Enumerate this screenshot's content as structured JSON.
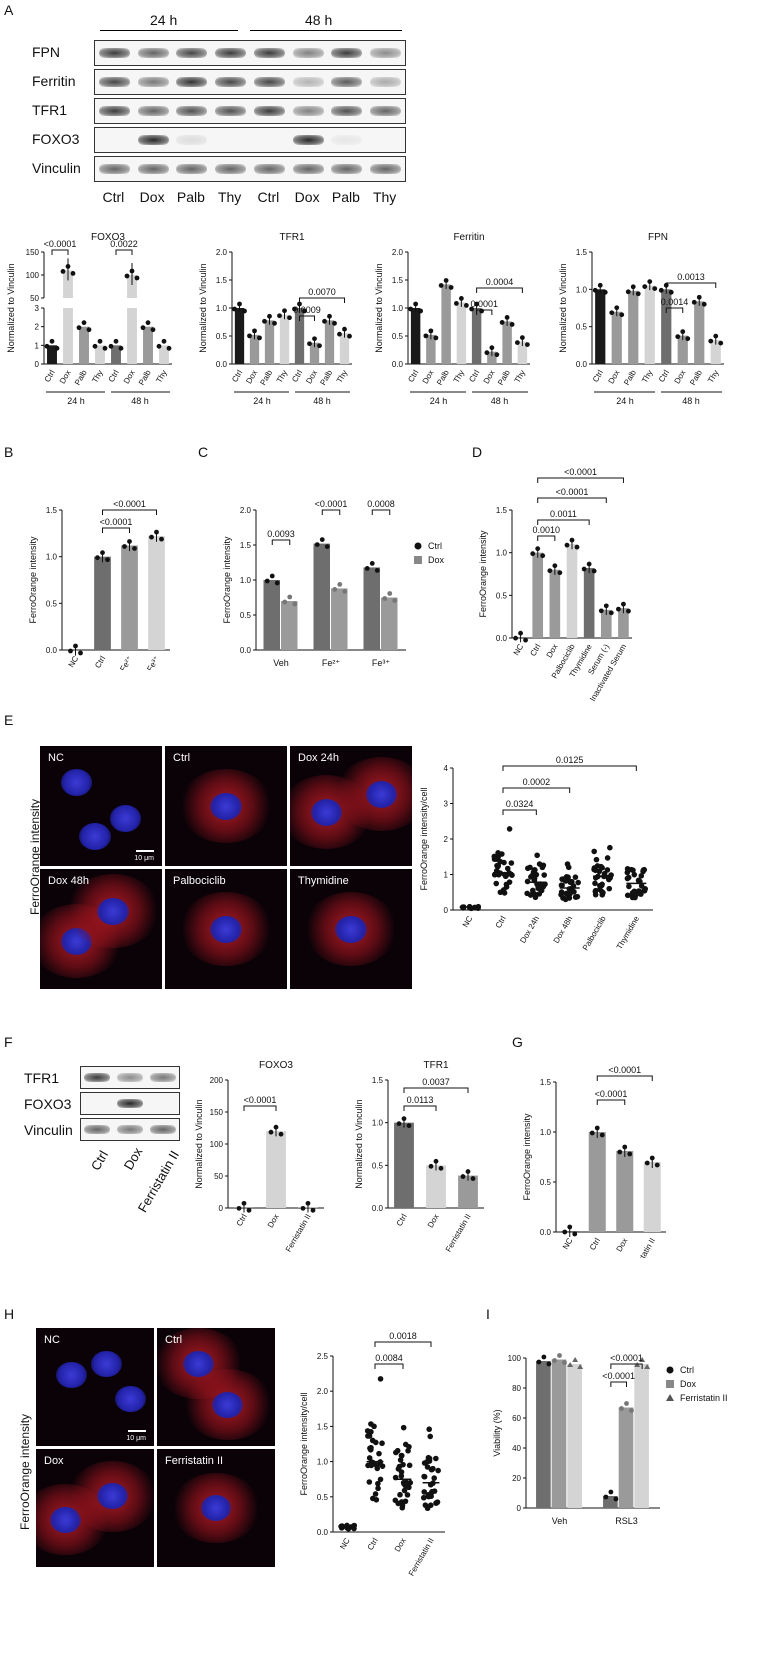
{
  "panels": {
    "A": {
      "letter": "A",
      "timepoints": [
        "24 h",
        "48 h"
      ],
      "blot_rows": [
        "FPN",
        "Ferritin",
        "TFR1",
        "FOXO3",
        "Vinculin"
      ],
      "lanes": [
        "Ctrl",
        "Dox",
        "Palb",
        "Thy",
        "Ctrl",
        "Dox",
        "Palb",
        "Thy"
      ]
    },
    "B": {
      "letter": "B"
    },
    "C": {
      "letter": "C"
    },
    "D": {
      "letter": "D"
    },
    "E": {
      "letter": "E",
      "ylabel_images": "FerroOrange intensity",
      "image_labels": [
        "NC",
        "Ctrl",
        "Dox 24h",
        "Dox 48h",
        "Palbociclib",
        "Thymidine"
      ],
      "scale": "10 μm"
    },
    "F": {
      "letter": "F",
      "blot_rows": [
        "TFR1",
        "FOXO3",
        "Vinculin"
      ],
      "lanes": [
        "Ctrl",
        "Dox",
        "Ferristatin II"
      ]
    },
    "G": {
      "letter": "G"
    },
    "H": {
      "letter": "H",
      "ylabel_images": "FerroOrange intensity",
      "image_labels": [
        "NC",
        "Ctrl",
        "Dox",
        "Ferristatin II"
      ],
      "scale": "10 μm"
    },
    "I": {
      "letter": "I"
    }
  },
  "colors": {
    "dark": "#6e6e6e",
    "mid": "#9a9a9a",
    "light": "#d4d4d4",
    "black": "#1a1a1a"
  },
  "chart_data": [
    {
      "id": "A-FOXO3",
      "type": "bar",
      "title": "FOXO3",
      "ylabel": "Normalized to Vinculin",
      "categories": [
        "Ctrl",
        "Dox",
        "Palb",
        "Thy",
        "Ctrl",
        "Dox",
        "Palb",
        "Thy"
      ],
      "groups": [
        "24 h",
        "48 h"
      ],
      "values": [
        1,
        110,
        2,
        1,
        1,
        100,
        2,
        1
      ],
      "broken_axis": {
        "lower": [
          0,
          3
        ],
        "upper": [
          50,
          150
        ],
        "lower_ticks": [
          "0",
          "1",
          "2",
          "3"
        ],
        "upper_ticks": [
          "50",
          "100",
          "150"
        ]
      },
      "comparisons": [
        {
          "label": "<0.0001"
        },
        {
          "label": "0.0022"
        }
      ]
    },
    {
      "id": "A-TFR1",
      "type": "bar",
      "title": "TFR1",
      "ylabel": "Normalized to Vinculin",
      "categories": [
        "Ctrl",
        "Dox",
        "Palb",
        "Thy",
        "Ctrl",
        "Dox",
        "Palb",
        "Thy"
      ],
      "groups": [
        "24 h",
        "48 h"
      ],
      "values": [
        1.0,
        0.52,
        0.78,
        0.88,
        1.0,
        0.38,
        0.78,
        0.55
      ],
      "ylim": [
        0,
        2.0
      ],
      "yticks": [
        "0.0",
        "0.5",
        "1.0",
        "1.5",
        "2.0"
      ],
      "comparisons": [
        {
          "label": "0.0009"
        },
        {
          "label": "0.0070"
        }
      ]
    },
    {
      "id": "A-Ferritin",
      "type": "bar",
      "title": "Ferritin",
      "ylabel": "Normalized to Vinculin",
      "categories": [
        "Ctrl",
        "Dox",
        "Palb",
        "Thy",
        "Ctrl",
        "Dox",
        "Palb",
        "Thy"
      ],
      "groups": [
        "24 h",
        "48 h"
      ],
      "values": [
        1.0,
        0.52,
        1.42,
        1.1,
        1.0,
        0.22,
        0.76,
        0.4
      ],
      "ylim": [
        0,
        2.0
      ],
      "yticks": [
        "0.0",
        "0.5",
        "1.0",
        "1.5",
        "2.0"
      ],
      "comparisons": [
        {
          "label": "0.0001"
        },
        {
          "label": "0.0004"
        }
      ]
    },
    {
      "id": "A-FPN",
      "type": "bar",
      "title": "FPN",
      "ylabel": "Normalized to Vinculin",
      "categories": [
        "Ctrl",
        "Dox",
        "Palb",
        "Thy",
        "Ctrl",
        "Dox",
        "Palb",
        "Thy"
      ],
      "groups": [
        "24 h",
        "48 h"
      ],
      "values": [
        1.0,
        0.7,
        0.98,
        1.05,
        1.0,
        0.38,
        0.84,
        0.32
      ],
      "ylim": [
        0,
        1.5
      ],
      "yticks": [
        "0.0",
        "0.5",
        "1.0",
        "1.5"
      ],
      "comparisons": [
        {
          "label": "0.0014"
        },
        {
          "label": "0.0013"
        }
      ]
    },
    {
      "id": "B",
      "type": "bar",
      "ylabel": "FerroOrange intensity",
      "categories": [
        "NC",
        "Ctrl",
        "Fe²⁺",
        "Fe³⁺"
      ],
      "values": [
        0,
        1.0,
        1.12,
        1.22
      ],
      "ylim": [
        0,
        1.5
      ],
      "yticks": [
        "0.0",
        "0.5",
        "1.0",
        "1.5"
      ],
      "comparisons": [
        {
          "label": "<0.0001"
        },
        {
          "label": "<0.0001"
        }
      ]
    },
    {
      "id": "C",
      "type": "bar",
      "ylabel": "FerroOrange intensity",
      "categories": [
        "Veh",
        "Fe²⁺",
        "Fe³⁺"
      ],
      "series": [
        {
          "name": "Ctrl",
          "values": [
            1.0,
            1.52,
            1.18
          ]
        },
        {
          "name": "Dox",
          "values": [
            0.7,
            0.88,
            0.75
          ]
        }
      ],
      "ylim": [
        0,
        2.0
      ],
      "yticks": [
        "0.0",
        "0.5",
        "1.0",
        "1.5",
        "2.0"
      ],
      "legend": "right",
      "comparisons": [
        {
          "label": "0.0093"
        },
        {
          "label": "<0.0001"
        },
        {
          "label": "0.0008"
        }
      ]
    },
    {
      "id": "D",
      "type": "bar",
      "ylabel": "FerroOrange intensity",
      "categories": [
        "NC",
        "Ctrl",
        "Dox",
        "Palbociclib",
        "Thymidine",
        "Serum (-)",
        "Inactivated Serum"
      ],
      "values": [
        0.01,
        1.0,
        0.8,
        1.1,
        0.82,
        0.33,
        0.35
      ],
      "ylim": [
        0,
        1.5
      ],
      "yticks": [
        "0.0",
        "0.5",
        "1.0",
        "1.5"
      ],
      "comparisons": [
        {
          "label": "0.0010"
        },
        {
          "label": "0.0011"
        },
        {
          "label": "<0.0001"
        },
        {
          "label": "<0.0001"
        }
      ]
    },
    {
      "id": "E",
      "type": "scatter",
      "ylabel": "FerroOrange intensity/cell",
      "categories": [
        "NC",
        "Ctrl",
        "Dox 24h",
        "Dox 48h",
        "Palbociclib",
        "Thymidine"
      ],
      "means": [
        0.08,
        1.05,
        0.78,
        0.62,
        0.95,
        0.75
      ],
      "ylim": [
        0,
        4
      ],
      "yticks": [
        "0",
        "1",
        "2",
        "3",
        "4"
      ],
      "comparisons": [
        {
          "label": "0.0324"
        },
        {
          "label": "0.0002"
        },
        {
          "label": "0.0125"
        }
      ]
    },
    {
      "id": "F-FOXO3",
      "type": "bar",
      "title": "FOXO3",
      "ylabel": "Normalized to Vinculin",
      "categories": [
        "Ctrl",
        "Dox",
        "Ferristatin II"
      ],
      "values": [
        1,
        120,
        1
      ],
      "ylim": [
        0,
        200
      ],
      "yticks": [
        "0",
        "50",
        "100",
        "150",
        "200"
      ],
      "comparisons": [
        {
          "label": "<0.0001"
        }
      ]
    },
    {
      "id": "F-TFR1",
      "type": "bar",
      "title": "TFR1",
      "ylabel": "Normalized to Vinculin",
      "categories": [
        "Ctrl",
        "Dox",
        "Ferristatin II"
      ],
      "values": [
        1.0,
        0.5,
        0.38
      ],
      "ylim": [
        0,
        1.5
      ],
      "yticks": [
        "0.0",
        "0.5",
        "1.0",
        "1.5"
      ],
      "comparisons": [
        {
          "label": "0.0113"
        },
        {
          "label": "0.0037"
        }
      ]
    },
    {
      "id": "G",
      "type": "bar",
      "ylabel": "FerroOrange intensity",
      "categories": [
        "NC",
        "Ctrl",
        "Dox",
        "Ferristatin II"
      ],
      "values": [
        0.01,
        1.0,
        0.81,
        0.7
      ],
      "ylim": [
        0,
        1.5
      ],
      "yticks": [
        "0.0",
        "0.5",
        "1.0",
        "1.5"
      ],
      "comparisons": [
        {
          "label": "<0.0001"
        },
        {
          "label": "<0.0001"
        }
      ]
    },
    {
      "id": "H",
      "type": "scatter",
      "ylabel": "FerroOrange intensity/cell",
      "categories": [
        "NC",
        "Ctrl",
        "Dox",
        "Ferristatin II"
      ],
      "means": [
        0.08,
        1.0,
        0.75,
        0.7
      ],
      "ylim": [
        0,
        2.5
      ],
      "yticks": [
        "0.0",
        "0.5",
        "1.0",
        "1.5",
        "2.0",
        "2.5"
      ],
      "comparisons": [
        {
          "label": "0.0084"
        },
        {
          "label": "0.0018"
        }
      ]
    },
    {
      "id": "I",
      "type": "bar",
      "ylabel": "Viability (%)",
      "categories": [
        "Veh",
        "RSL3"
      ],
      "series": [
        {
          "name": "Ctrl",
          "values": [
            98,
            8
          ]
        },
        {
          "name": "Dox",
          "values": [
            99,
            67
          ]
        },
        {
          "name": "Ferristatin II",
          "values": [
            96,
            96
          ]
        }
      ],
      "ylim": [
        0,
        100
      ],
      "yticks": [
        "0",
        "20",
        "40",
        "60",
        "80",
        "100"
      ],
      "legend": "right",
      "comparisons": [
        {
          "label": "<0.0001"
        },
        {
          "label": "<0.0001"
        }
      ]
    }
  ]
}
